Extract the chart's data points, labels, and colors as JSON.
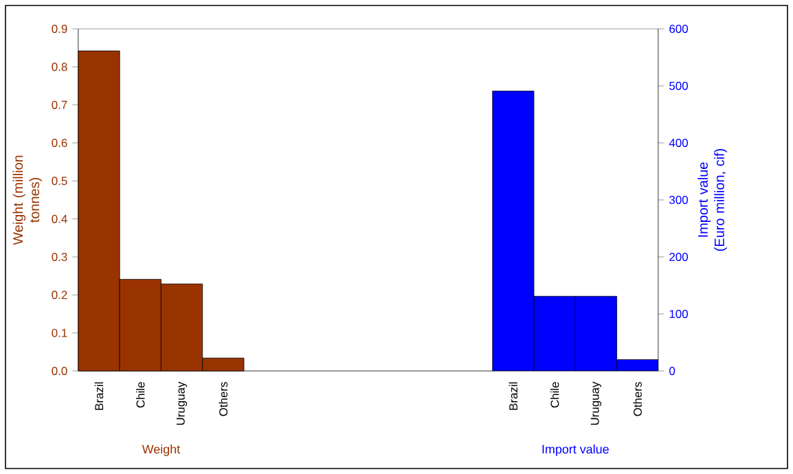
{
  "chart_data": {
    "type": "bar",
    "categories": [
      "Brazil",
      "Chile",
      "Uruguay",
      "Others",
      null,
      null,
      null,
      null,
      null,
      null,
      "Brazil",
      "Chile",
      "Uruguay",
      "Others"
    ],
    "series": [
      {
        "name": "Weight",
        "color": "#993300",
        "values": [
          0.842,
          0.241,
          0.229,
          0.034,
          null,
          null,
          null,
          null,
          null,
          null,
          null,
          null,
          null,
          null
        ]
      },
      {
        "name": "Import value",
        "color": "#0000ff",
        "axis": "y2",
        "values": [
          null,
          null,
          null,
          null,
          null,
          null,
          null,
          null,
          null,
          null,
          491,
          131,
          131,
          20
        ]
      }
    ],
    "ylabel": "Weight (million tonnes)",
    "y2label": "Import value (Euro million, cif)",
    "ylim": [
      0,
      0.9
    ],
    "yticks": [
      {
        "value": 0,
        "label": "0.0"
      },
      0.1,
      0.2,
      0.3,
      0.4,
      0.5,
      0.6,
      0.7,
      0.8,
      0.9
    ],
    "y2lim": [
      0,
      600
    ],
    "y2ticks": [
      0,
      100,
      200,
      300,
      400,
      500,
      600
    ]
  }
}
